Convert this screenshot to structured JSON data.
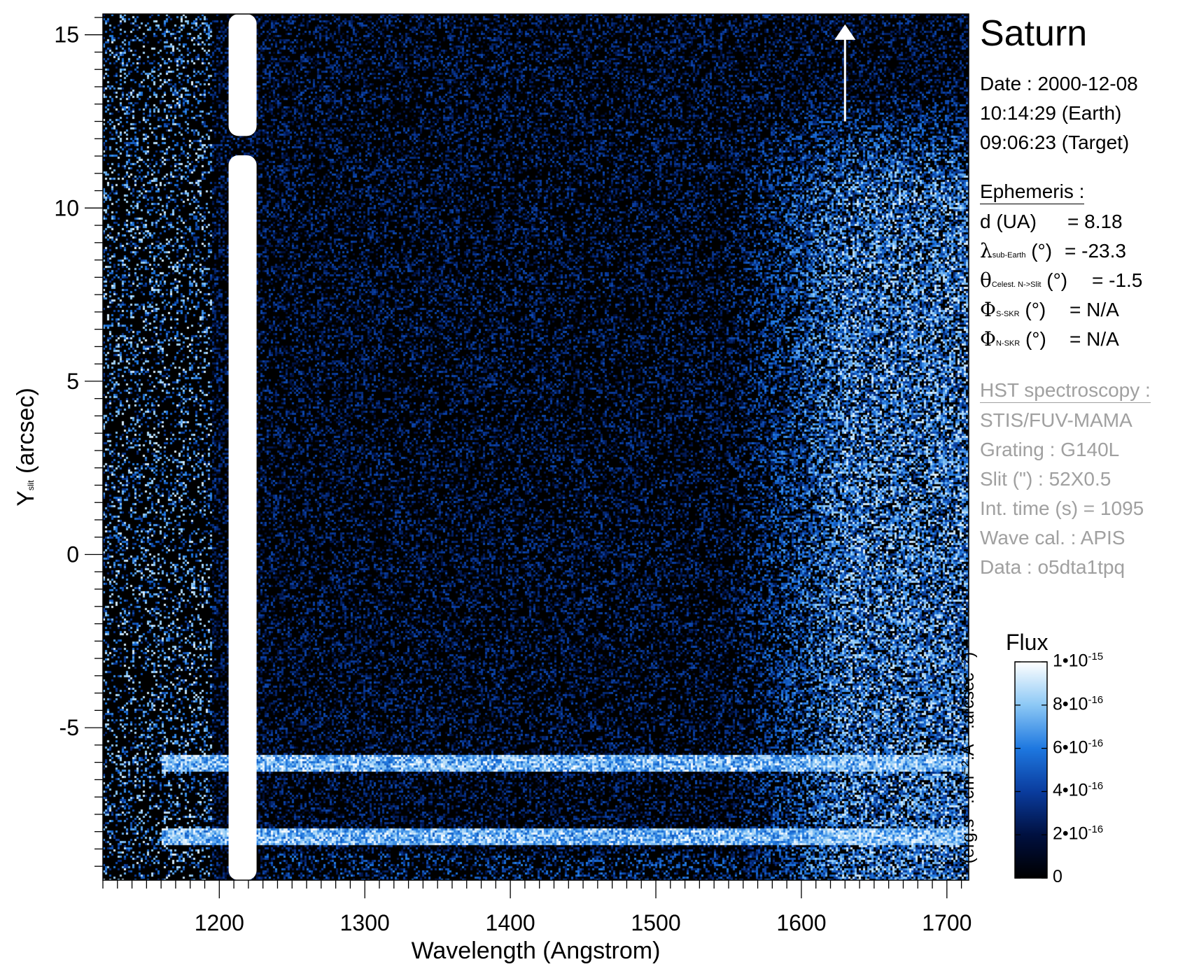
{
  "header": {
    "title": "Saturn",
    "date_line": "Date : 2000-12-08",
    "earth_time": "10:14:29 (Earth)",
    "target_time": "09:06:23 (Target)"
  },
  "ephemeris": {
    "heading": "Ephemeris :",
    "d_label": "d (UA)",
    "d_value": "= 8.18",
    "lambda_symbol": "λ",
    "lambda_sub": "sub-Earth",
    "lambda_unit": "(°)",
    "lambda_value": "= -23.3",
    "theta_symbol": "θ",
    "theta_sub": "Celest. N->Slit",
    "theta_unit": "(°)",
    "theta_value": "= -1.5",
    "phi_s_symbol": "Φ",
    "phi_s_sub": "S-SKR",
    "phi_s_unit": "(°)",
    "phi_s_value": "= N/A",
    "phi_n_symbol": "Φ",
    "phi_n_sub": "N-SKR",
    "phi_n_unit": "(°)",
    "phi_n_value": "= N/A"
  },
  "hst": {
    "heading": "HST spectroscopy :",
    "instrument": "STIS/FUV-MAMA",
    "grating": "Grating : G140L",
    "slit": "Slit (\") : 52X0.5",
    "int_time": "Int. time (s) = 1095",
    "wave_cal": "Wave cal. : APIS",
    "data": "Data : o5dta1tpq"
  },
  "colorbar": {
    "title": "Flux",
    "unit_label": "(erg.s⁻¹.cm⁻².A⁻¹.arcsec⁻²)",
    "ticks": [
      {
        "mantissa": "1•10",
        "exp": "-15",
        "value": 1e-15
      },
      {
        "mantissa": "8•10",
        "exp": "-16",
        "value": 8e-16
      },
      {
        "mantissa": "6•10",
        "exp": "-16",
        "value": 6e-16
      },
      {
        "mantissa": "4•10",
        "exp": "-16",
        "value": 4e-16
      },
      {
        "mantissa": "2•10",
        "exp": "-16",
        "value": 2e-16
      },
      {
        "mantissa": "0",
        "exp": "",
        "value": 0
      }
    ],
    "range": [
      0,
      1e-15
    ],
    "colors": [
      "#000000",
      "#001040",
      "#0a3c9e",
      "#1e78e0",
      "#8cc8f5",
      "#ffffff"
    ]
  },
  "chart_data": {
    "type": "heatmap",
    "xlabel": "Wavelength (Angstrom)",
    "ylabel_main": "Y",
    "ylabel_sub": "slit",
    "ylabel_unit": " (arcsec)",
    "xlim": [
      1120,
      1715
    ],
    "ylim": [
      -9.4,
      15.6
    ],
    "x_ticks": [
      1200,
      1300,
      1400,
      1500,
      1600,
      1700
    ],
    "y_ticks": [
      -5,
      0,
      5,
      10,
      15
    ],
    "x_tick_labels": [
      "1200",
      "1300",
      "1400",
      "1500",
      "1600",
      "1700"
    ],
    "y_tick_labels": [
      "-5",
      "0",
      "5",
      "10",
      "15"
    ],
    "features": {
      "lyman_alpha_wavelength": 1216,
      "lyman_alpha_gap_y": [
        11.4,
        12.2
      ],
      "emission_rows_y": [
        -6.0,
        -8.1
      ],
      "bright_continuum_start_wavelength": 1550
    },
    "arrow": {
      "x": 1630,
      "y_from": 12.5,
      "y_to": 15.3
    }
  }
}
